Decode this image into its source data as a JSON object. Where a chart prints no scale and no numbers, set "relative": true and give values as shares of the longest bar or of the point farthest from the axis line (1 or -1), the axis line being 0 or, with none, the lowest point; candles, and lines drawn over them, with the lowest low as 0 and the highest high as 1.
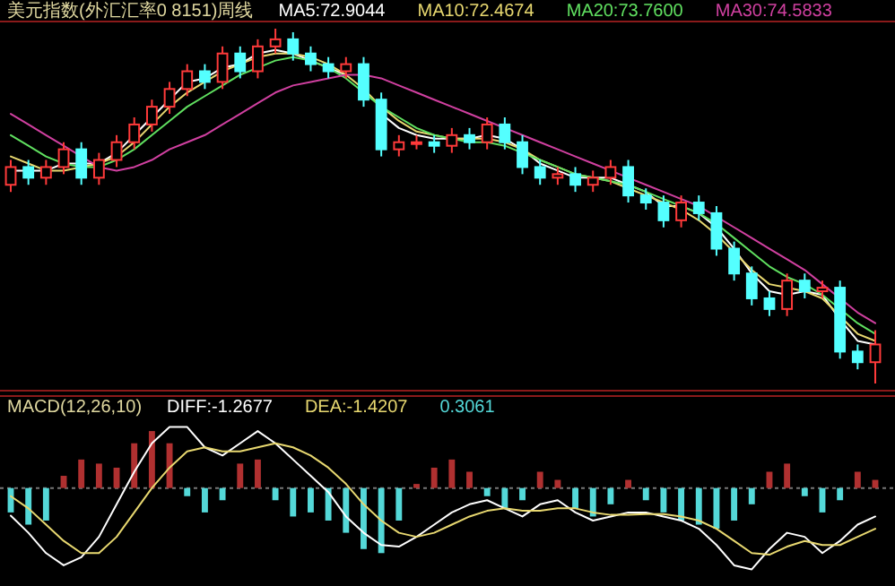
{
  "chart_data": [
    {
      "type": "candlestick",
      "title": "美元指数(外汇汇率0 8151)周线",
      "relative": true,
      "legend": "top",
      "categories": [
        null,
        null,
        null,
        null,
        null,
        null,
        null,
        null,
        null,
        null,
        null,
        null,
        null,
        null,
        null,
        null,
        null,
        null,
        null,
        null,
        null,
        null,
        null,
        null,
        null,
        null,
        null,
        null,
        null,
        null,
        null,
        null,
        null,
        null,
        null,
        null,
        null,
        null,
        null,
        null,
        null,
        null,
        null,
        null,
        null,
        null,
        null,
        null,
        null,
        null
      ],
      "ohlc": [
        [
          0.56,
          0.63,
          0.54,
          0.61
        ],
        [
          0.61,
          0.63,
          0.56,
          0.58
        ],
        [
          0.58,
          0.63,
          0.56,
          0.61
        ],
        [
          0.61,
          0.68,
          0.59,
          0.66
        ],
        [
          0.66,
          0.68,
          0.56,
          0.58
        ],
        [
          0.58,
          0.65,
          0.56,
          0.63
        ],
        [
          0.63,
          0.7,
          0.61,
          0.68
        ],
        [
          0.68,
          0.75,
          0.66,
          0.73
        ],
        [
          0.73,
          0.8,
          0.71,
          0.78
        ],
        [
          0.78,
          0.85,
          0.76,
          0.83
        ],
        [
          0.83,
          0.9,
          0.81,
          0.88
        ],
        [
          0.88,
          0.9,
          0.83,
          0.85
        ],
        [
          0.85,
          0.95,
          0.83,
          0.93
        ],
        [
          0.93,
          0.95,
          0.86,
          0.88
        ],
        [
          0.88,
          0.97,
          0.86,
          0.95
        ],
        [
          0.95,
          1.0,
          0.93,
          0.97
        ],
        [
          0.97,
          0.99,
          0.91,
          0.93
        ],
        [
          0.93,
          0.95,
          0.88,
          0.9
        ],
        [
          0.9,
          0.92,
          0.86,
          0.88
        ],
        [
          0.88,
          0.92,
          0.86,
          0.9
        ],
        [
          0.9,
          0.92,
          0.78,
          0.8
        ],
        [
          0.8,
          0.82,
          0.64,
          0.66
        ],
        [
          0.66,
          0.7,
          0.64,
          0.68
        ],
        [
          0.68,
          0.7,
          0.66,
          0.68
        ],
        [
          0.68,
          0.7,
          0.65,
          0.67
        ],
        [
          0.67,
          0.72,
          0.65,
          0.7
        ],
        [
          0.7,
          0.72,
          0.66,
          0.68
        ],
        [
          0.68,
          0.75,
          0.66,
          0.73
        ],
        [
          0.73,
          0.75,
          0.66,
          0.68
        ],
        [
          0.68,
          0.7,
          0.59,
          0.61
        ],
        [
          0.61,
          0.63,
          0.56,
          0.58
        ],
        [
          0.58,
          0.61,
          0.56,
          0.59
        ],
        [
          0.59,
          0.61,
          0.54,
          0.56
        ],
        [
          0.56,
          0.6,
          0.54,
          0.58
        ],
        [
          0.58,
          0.63,
          0.56,
          0.61
        ],
        [
          0.61,
          0.63,
          0.51,
          0.53
        ],
        [
          0.53,
          0.55,
          0.49,
          0.51
        ],
        [
          0.51,
          0.53,
          0.44,
          0.46
        ],
        [
          0.46,
          0.53,
          0.44,
          0.51
        ],
        [
          0.51,
          0.53,
          0.46,
          0.48
        ],
        [
          0.48,
          0.5,
          0.36,
          0.38
        ],
        [
          0.38,
          0.4,
          0.29,
          0.31
        ],
        [
          0.31,
          0.33,
          0.22,
          0.24
        ],
        [
          0.24,
          0.26,
          0.19,
          0.21
        ],
        [
          0.21,
          0.31,
          0.19,
          0.29
        ],
        [
          0.29,
          0.31,
          0.24,
          0.26
        ],
        [
          0.26,
          0.29,
          0.24,
          0.27
        ],
        [
          0.27,
          0.29,
          0.07,
          0.09
        ],
        [
          0.09,
          0.11,
          0.04,
          0.06
        ],
        [
          0.06,
          0.15,
          0.0,
          0.11
        ]
      ],
      "series": [
        {
          "type": "line",
          "name": "MA5:72.9044",
          "color": "#ffffff",
          "values": [
            0.6,
            0.6,
            0.6,
            0.62,
            0.62,
            0.62,
            0.65,
            0.7,
            0.75,
            0.8,
            0.85,
            0.86,
            0.89,
            0.9,
            0.93,
            0.94,
            0.93,
            0.91,
            0.89,
            0.87,
            null,
            0.76,
            0.72,
            0.7,
            0.69,
            0.69,
            0.69,
            0.7,
            0.69,
            0.66,
            0.62,
            0.6,
            0.58,
            0.58,
            0.58,
            0.56,
            0.54,
            0.5,
            0.5,
            0.48,
            0.44,
            0.38,
            0.31,
            0.26,
            0.25,
            0.26,
            0.25,
            0.18,
            0.12,
            0.11
          ]
        },
        {
          "type": "line",
          "name": "MA10:72.4674",
          "color": "#e8d870",
          "values": [
            0.64,
            0.62,
            0.6,
            0.6,
            0.61,
            0.62,
            0.64,
            0.68,
            0.73,
            0.78,
            0.82,
            0.85,
            0.88,
            0.9,
            0.92,
            0.93,
            0.93,
            0.92,
            0.9,
            0.87,
            0.83,
            0.78,
            0.74,
            0.71,
            0.7,
            0.69,
            0.69,
            0.69,
            0.68,
            0.66,
            0.63,
            0.61,
            0.59,
            0.58,
            0.57,
            0.55,
            0.53,
            0.51,
            0.49,
            0.46,
            0.42,
            0.37,
            0.32,
            0.28,
            0.27,
            0.26,
            0.24,
            0.19,
            0.14,
            0.12
          ]
        },
        {
          "type": "line",
          "name": "MA20:73.7600",
          "color": "#60e060",
          "values": [
            0.7,
            0.67,
            0.64,
            0.62,
            0.61,
            0.61,
            0.63,
            0.66,
            0.7,
            0.74,
            0.78,
            0.81,
            0.84,
            0.87,
            0.89,
            0.91,
            0.92,
            0.91,
            0.89,
            0.86,
            0.82,
            0.78,
            0.75,
            0.72,
            0.7,
            0.69,
            0.68,
            0.68,
            0.67,
            0.65,
            0.63,
            0.61,
            0.59,
            0.58,
            0.57,
            0.56,
            0.54,
            0.52,
            0.5,
            0.48,
            0.45,
            0.41,
            0.37,
            0.33,
            0.3,
            0.28,
            0.25,
            0.21,
            0.17,
            0.14
          ]
        },
        {
          "type": "line",
          "name": "MA30:74.5833",
          "color": "#d040a0",
          "values": [
            0.76,
            0.73,
            0.7,
            0.67,
            0.64,
            0.61,
            0.6,
            0.61,
            0.63,
            0.66,
            0.68,
            0.7,
            0.73,
            0.76,
            0.79,
            0.82,
            0.84,
            0.85,
            0.86,
            0.87,
            0.87,
            0.86,
            0.84,
            0.82,
            0.8,
            0.78,
            0.76,
            0.74,
            0.72,
            0.7,
            0.68,
            0.66,
            0.64,
            0.62,
            0.6,
            0.58,
            0.56,
            0.54,
            0.52,
            0.5,
            0.47,
            0.44,
            0.41,
            0.38,
            0.35,
            0.32,
            0.28,
            0.24,
            0.2,
            0.17
          ]
        }
      ]
    },
    {
      "type": "bar",
      "title": "MACD(12,26,10)",
      "relative": true,
      "legend": "top",
      "ref_lines": [
        {
          "axis": "y",
          "value": 0,
          "color": "#777777",
          "line_style": "dashed"
        }
      ],
      "categories": [
        null,
        null,
        null,
        null,
        null,
        null,
        null,
        null,
        null,
        null,
        null,
        null,
        null,
        null,
        null,
        null,
        null,
        null,
        null,
        null,
        null,
        null,
        null,
        null,
        null,
        null,
        null,
        null,
        null,
        null,
        null,
        null,
        null,
        null,
        null,
        null,
        null,
        null,
        null,
        null,
        null,
        null,
        null,
        null,
        null,
        null,
        null,
        null,
        null,
        null
      ],
      "series": [
        {
          "type": "line",
          "name": "DIFF:-1.2677",
          "color": "#ffffff",
          "values": [
            -0.34,
            -0.55,
            -0.8,
            -0.95,
            -0.85,
            -0.6,
            -0.2,
            0.2,
            0.55,
            0.75,
            0.75,
            0.5,
            0.4,
            0.55,
            0.7,
            0.55,
            0.35,
            0.15,
            -0.05,
            -0.35,
            -0.55,
            -0.7,
            -0.72,
            -0.6,
            -0.45,
            -0.3,
            -0.2,
            -0.15,
            -0.25,
            -0.35,
            -0.2,
            -0.15,
            -0.3,
            -0.4,
            -0.35,
            -0.3,
            -0.3,
            -0.35,
            -0.4,
            -0.5,
            -0.7,
            -0.95,
            -1.0,
            -0.75,
            -0.55,
            -0.6,
            -0.8,
            -0.65,
            -0.45,
            -0.35
          ]
        },
        {
          "type": "line",
          "name": "DEA:-1.4207",
          "color": "#e8d870",
          "values": [
            -0.1,
            -0.25,
            -0.45,
            -0.65,
            -0.8,
            -0.8,
            -0.6,
            -0.3,
            0.0,
            0.25,
            0.45,
            0.5,
            0.45,
            0.45,
            0.5,
            0.55,
            0.5,
            0.4,
            0.25,
            0.05,
            -0.2,
            -0.4,
            -0.55,
            -0.6,
            -0.55,
            -0.45,
            -0.35,
            -0.28,
            -0.25,
            -0.28,
            -0.28,
            -0.25,
            -0.25,
            -0.3,
            -0.33,
            -0.33,
            -0.32,
            -0.32,
            -0.35,
            -0.4,
            -0.5,
            -0.65,
            -0.8,
            -0.82,
            -0.72,
            -0.65,
            -0.7,
            -0.7,
            -0.6,
            -0.5
          ]
        },
        {
          "type": "bar",
          "name": "0.3061",
          "color": "#54d8d8",
          "values": [
            -0.3,
            -0.45,
            -0.4,
            0.15,
            0.35,
            0.3,
            0.25,
            0.55,
            0.7,
            0.55,
            -0.1,
            -0.3,
            -0.15,
            0.3,
            0.35,
            -0.15,
            -0.35,
            -0.3,
            -0.4,
            -0.55,
            -0.75,
            -0.8,
            -0.4,
            0.05,
            0.25,
            0.35,
            0.2,
            -0.1,
            -0.25,
            -0.15,
            0.2,
            0.1,
            -0.25,
            -0.35,
            -0.2,
            0.1,
            -0.15,
            -0.3,
            -0.4,
            -0.45,
            -0.5,
            -0.4,
            -0.2,
            0.2,
            0.3,
            -0.1,
            -0.3,
            -0.15,
            0.2,
            0.1
          ],
          "colors": [
            "#54d8d8",
            "#54d8d8",
            "#54d8d8",
            "#b03030",
            "#b03030",
            "#b03030",
            "#b03030",
            "#b03030",
            "#b03030",
            "#b03030",
            "#54d8d8",
            "#54d8d8",
            "#54d8d8",
            "#b03030",
            "#b03030",
            "#54d8d8",
            "#54d8d8",
            "#54d8d8",
            "#54d8d8",
            "#54d8d8",
            "#54d8d8",
            "#54d8d8",
            "#54d8d8",
            "#b03030",
            "#b03030",
            "#b03030",
            "#b03030",
            "#54d8d8",
            "#54d8d8",
            "#54d8d8",
            "#b03030",
            "#b03030",
            "#54d8d8",
            "#54d8d8",
            "#54d8d8",
            "#b03030",
            "#54d8d8",
            "#54d8d8",
            "#54d8d8",
            "#54d8d8",
            "#54d8d8",
            "#54d8d8",
            "#54d8d8",
            "#b03030",
            "#b03030",
            "#54d8d8",
            "#54d8d8",
            "#54d8d8",
            "#b03030",
            "#b03030"
          ]
        }
      ]
    }
  ]
}
